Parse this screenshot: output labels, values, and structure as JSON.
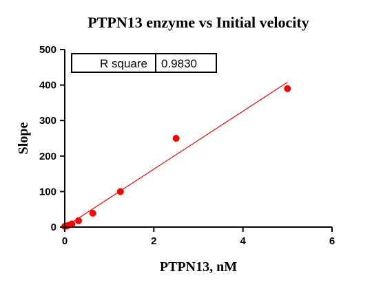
{
  "chart_data": {
    "type": "scatter",
    "title": "PTPN13 enzyme vs Initial velocity",
    "xlabel": "PTPN13, nM",
    "ylabel": "Slope",
    "xlim": [
      0,
      6
    ],
    "ylim": [
      0,
      500
    ],
    "x_ticks": [
      0,
      2,
      4,
      6
    ],
    "y_ticks": [
      0,
      100,
      200,
      300,
      400,
      500
    ],
    "points": [
      {
        "x": 0.0,
        "y": 2
      },
      {
        "x": 0.04,
        "y": 3
      },
      {
        "x": 0.08,
        "y": 5
      },
      {
        "x": 0.16,
        "y": 9
      },
      {
        "x": 0.31,
        "y": 18
      },
      {
        "x": 0.63,
        "y": 39
      },
      {
        "x": 1.25,
        "y": 100
      },
      {
        "x": 2.5,
        "y": 250
      },
      {
        "x": 5.0,
        "y": 390
      }
    ],
    "fit_line": {
      "x": [
        0,
        5.0
      ],
      "y": [
        0,
        408
      ]
    },
    "point_color": "#ff0000",
    "line_color": "#ff0000",
    "grid": false,
    "annotation_table": {
      "label": "R square",
      "value": "0.9830"
    }
  }
}
